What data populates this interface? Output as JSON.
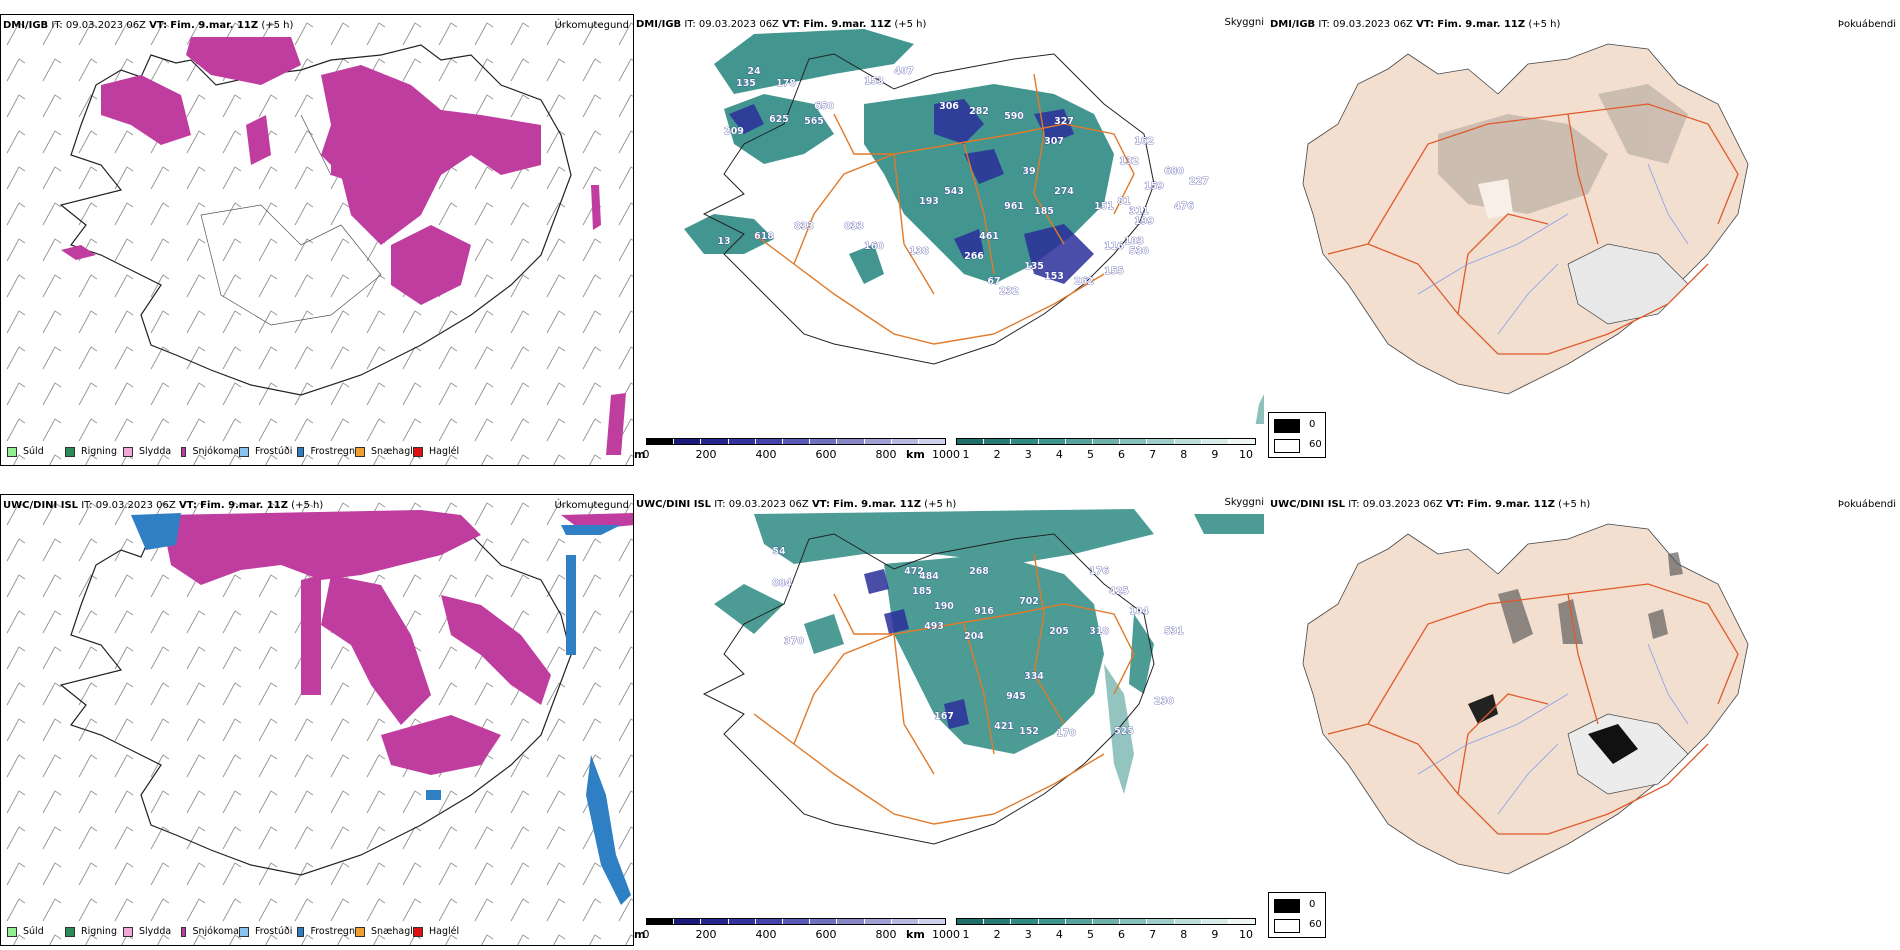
{
  "colors": {
    "precip_snow": "#c03da0",
    "precip_frost": "#2f7fc4",
    "height_dark": "#1f2a8c",
    "cloud_teal": "#2d8b83",
    "road_orange": "#e07a2a",
    "land_beige": "#f2dfd0"
  },
  "rows": [
    {
      "model": "DMI/IGB",
      "it_label": "IT:",
      "it_value": "09.03.2023 06Z",
      "vt_label": "VT:",
      "vt_value": "Fim. 9.mar. 11Z",
      "lead": "(+5 h)",
      "panel_titles": [
        "Úrkomutegund",
        "Skyggni",
        "Þokuábendi"
      ],
      "visibility_labels": [
        "135",
        "178",
        "209",
        "625",
        "565",
        "650",
        "407",
        "306",
        "282",
        "590",
        "327",
        "307",
        "153",
        "162",
        "132",
        "680",
        "227",
        "159",
        "151",
        "81",
        "193",
        "543",
        "961",
        "185",
        "274",
        "39",
        "311",
        "199",
        "618",
        "833",
        "13",
        "160",
        "138",
        "266",
        "461",
        "67",
        "135",
        "153",
        "232",
        "262",
        "155",
        "833",
        "530",
        "476",
        "116",
        "24",
        "103"
      ]
    },
    {
      "model": "UWC/DINI ISL",
      "it_label": "IT:",
      "it_value": "09.03.2023 06Z",
      "vt_label": "VT:",
      "vt_value": "Fim. 9.mar. 11Z",
      "lead": "(+5 h)",
      "panel_titles": [
        "Úrkomutegund",
        "Skyggni",
        "Þokuábendi"
      ],
      "visibility_labels": [
        "54",
        "884",
        "472",
        "484",
        "268",
        "185",
        "190",
        "916",
        "493",
        "204",
        "702",
        "176",
        "425",
        "104",
        "318",
        "531",
        "205",
        "370",
        "334",
        "945",
        "421",
        "167",
        "152",
        "170",
        "525",
        "230"
      ]
    }
  ],
  "precip_legend": [
    "Súld",
    "Rigning",
    "Slydda",
    "Snjókoma",
    "Frostúði",
    "Frostregn",
    "Snæhagl",
    "Haglél"
  ],
  "precip_legend_colors": [
    "#90ee90",
    "#2e8b57",
    "#f4a6d6",
    "#c03da0",
    "#87c1f0",
    "#2f7fc4",
    "#f0a030",
    "#e01010"
  ],
  "height_bar": {
    "unit": "m",
    "ticks": [
      "0",
      "200",
      "400",
      "600",
      "800",
      "1000"
    ],
    "colors": [
      "#000000",
      "#1a1a7a",
      "#26268f",
      "#3333a0",
      "#4444aa",
      "#5a5ab8",
      "#7070c0",
      "#8888c8",
      "#a0a0d4",
      "#b8b8e0",
      "#d0d0ec"
    ]
  },
  "cloud_bar": {
    "unit": "km",
    "ticks": [
      "1",
      "2",
      "3",
      "4",
      "5",
      "6",
      "7",
      "8",
      "9",
      "10"
    ],
    "colors": [
      "#1f6f6a",
      "#277c76",
      "#2f8a83",
      "#3c958e",
      "#55a39d",
      "#6db1ac",
      "#86c0bb",
      "#a0cfcb",
      "#bcdedb",
      "#d8ecea",
      "#f0f8f7"
    ]
  },
  "fog_legend": {
    "items": [
      "0",
      "60"
    ],
    "colors": [
      "#000000",
      "#ffffff"
    ]
  }
}
